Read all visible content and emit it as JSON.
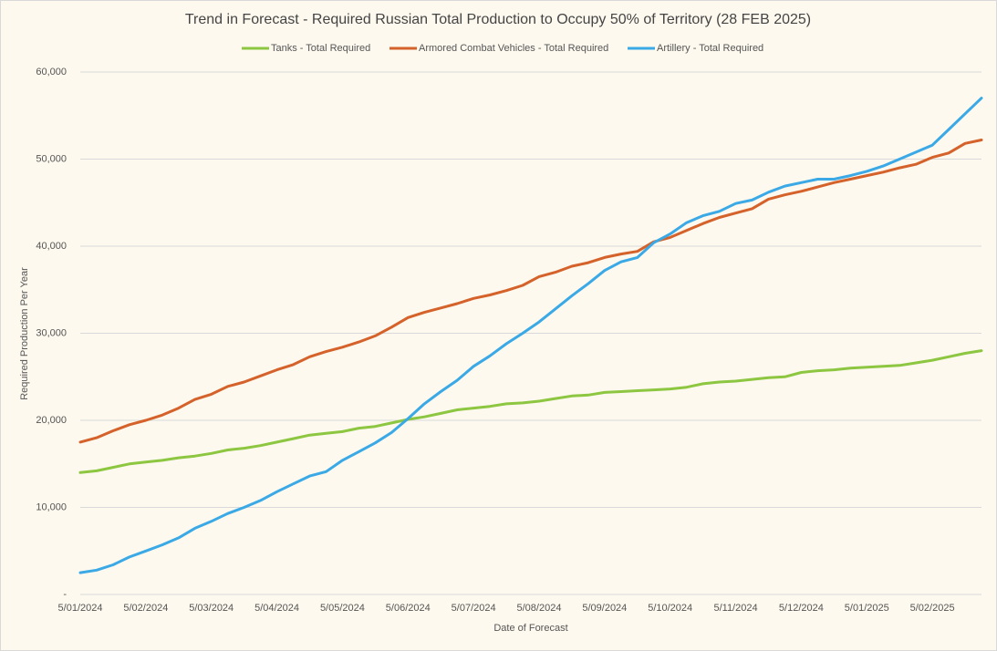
{
  "chart_data": {
    "type": "line",
    "title": "Trend in Forecast - Required Russian Total Production to Occupy 50% of Territory (28 FEB 2025)",
    "x_label": "Date of Forecast",
    "y_label": "Required Production Per Year",
    "categories": [
      "5/01/2024",
      null,
      null,
      null,
      "5/02/2024",
      null,
      null,
      null,
      "5/03/2024",
      null,
      null,
      null,
      "5/04/2024",
      null,
      null,
      null,
      "5/05/2024",
      null,
      null,
      null,
      "5/06/2024",
      null,
      null,
      null,
      "5/07/2024",
      null,
      null,
      null,
      "5/08/2024",
      null,
      null,
      null,
      "5/09/2024",
      null,
      null,
      null,
      "5/10/2024",
      null,
      null,
      null,
      "5/11/2024",
      null,
      null,
      null,
      "5/12/2024",
      null,
      null,
      null,
      "5/01/2025",
      null,
      null,
      null,
      "5/02/2025",
      null,
      null,
      null
    ],
    "series": [
      {
        "name": "Tanks - Total Required",
        "color": "#8dc640",
        "values": [
          14000,
          14200,
          14600,
          15000,
          15200,
          15400,
          15700,
          15900,
          16200,
          16600,
          16800,
          17100,
          17500,
          17900,
          18300,
          18500,
          18700,
          19100,
          19300,
          19700,
          20100,
          20400,
          20800,
          21200,
          21400,
          21600,
          21900,
          22000,
          22200,
          22500,
          22800,
          22900,
          23200,
          23300,
          23400,
          23500,
          23600,
          23800,
          24200,
          24400,
          24500,
          24700,
          24900,
          25000,
          25500,
          25700,
          25800,
          26000,
          26100,
          26200,
          26300,
          26600,
          26900,
          27300,
          27700,
          28000
        ]
      },
      {
        "name": "Armored Combat Vehicles - Total Required",
        "color": "#d4622a",
        "values": [
          17500,
          18000,
          18800,
          19500,
          20000,
          20600,
          21400,
          22400,
          23000,
          23900,
          24400,
          25100,
          25800,
          26400,
          27300,
          27900,
          28400,
          29000,
          29700,
          30700,
          31800,
          32400,
          32900,
          33400,
          34000,
          34400,
          34900,
          35500,
          36500,
          37000,
          37700,
          38100,
          38700,
          39100,
          39400,
          40500,
          41000,
          41800,
          42600,
          43300,
          43800,
          44300,
          45400,
          45900,
          46300,
          46800,
          47300,
          47700,
          48100,
          48500,
          49000,
          49400,
          50200,
          50700,
          51800,
          52200
        ]
      },
      {
        "name": "Artillery - Total Required",
        "color": "#3aa9e6",
        "values": [
          2500,
          2800,
          3400,
          4300,
          5000,
          5700,
          6500,
          7600,
          8400,
          9300,
          10000,
          10800,
          11800,
          12700,
          13600,
          14100,
          15400,
          16400,
          17400,
          18600,
          20200,
          21900,
          23300,
          24600,
          26200,
          27400,
          28800,
          30000,
          31300,
          32800,
          34300,
          35700,
          37200,
          38200,
          38700,
          40400,
          41400,
          42700,
          43500,
          44000,
          44900,
          45300,
          46200,
          46900,
          47300,
          47700,
          47700,
          48100,
          48600,
          49200,
          50000,
          50800,
          51600,
          53400,
          55200,
          57000
        ]
      }
    ],
    "ylim": [
      0,
      60000
    ],
    "yticks": [
      {
        "value": 0,
        "label": "-"
      },
      {
        "value": 10000,
        "label": "10,000"
      },
      {
        "value": 20000,
        "label": "20,000"
      },
      {
        "value": 30000,
        "label": "30,000"
      },
      {
        "value": 40000,
        "label": "40,000"
      },
      {
        "value": 50000,
        "label": "50,000"
      },
      {
        "value": 60000,
        "label": "60,000"
      }
    ],
    "grid": true,
    "legend": "top"
  }
}
